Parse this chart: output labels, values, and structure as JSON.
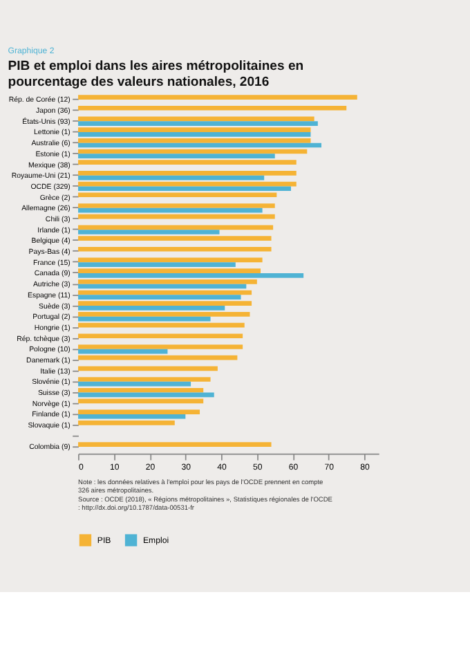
{
  "chart_data": {
    "type": "bar",
    "orientation": "horizontal",
    "title": "PIB et emploi dans les aires métropolitaines en pourcentage des valeurs nationales, 2016",
    "subtitle": "Graphique 2",
    "categories": [
      "Rép. de Corée (12)",
      "Japon (36)",
      "États-Unis (93)",
      "Lettonie (1)",
      "Australie (6)",
      "Estonie (1)",
      "Mexique (38)",
      "Royaume-Uni (21)",
      "OCDE (329)",
      "Grèce (2)",
      "Allemagne (26)",
      "Chili (3)",
      "Irlande (1)",
      "Belgique (4)",
      "Pays-Bas (4)",
      "France (15)",
      "Canada (9)",
      "Autriche (3)",
      "Espagne (11)",
      "Suède (3)",
      "Portugal (2)",
      "Hongrie (1)",
      "Rép. tchèque (3)",
      "Pologne (10)",
      "Danemark (1)",
      "Italie (13)",
      "Slovénie (1)",
      "Suisse (3)",
      "Norvège (1)",
      "Finlande (1)",
      "Slovaquie (1)",
      null,
      "Colombia (9)"
    ],
    "series": [
      {
        "name": "PIB",
        "color": "#f5b335",
        "values": [
          78,
          75,
          66,
          65,
          65,
          64,
          61,
          61,
          61,
          55.5,
          55,
          55,
          54.5,
          54,
          54,
          51.5,
          51,
          50,
          48.5,
          48.5,
          48,
          46.5,
          46,
          46,
          44.5,
          39,
          37,
          35,
          35,
          34,
          27,
          null,
          54
        ]
      },
      {
        "name": "Emploi",
        "color": "#4fb3d4",
        "values": [
          null,
          null,
          67,
          65,
          68,
          55,
          null,
          52,
          59.5,
          null,
          51.5,
          null,
          39.5,
          null,
          null,
          44,
          63,
          47,
          45.5,
          41,
          37,
          null,
          null,
          25,
          null,
          null,
          31.5,
          38,
          null,
          30,
          null,
          null,
          null
        ]
      }
    ],
    "xlim": [
      0,
      84
    ],
    "xticks": [
      0,
      10,
      20,
      30,
      40,
      50,
      60,
      70,
      80
    ],
    "grid": false,
    "legend": "bottom",
    "annotations": [
      "Note : les données relatives à l'emploi pour les pays de l'OCDE prennent en compte 326 aires métropolitaines.",
      "Source : OCDE (2018), « Régions métropolitaines », Statistiques régionales de l'OCDE : http://dx.doi.org/10.1787/data-00531-fr"
    ]
  }
}
